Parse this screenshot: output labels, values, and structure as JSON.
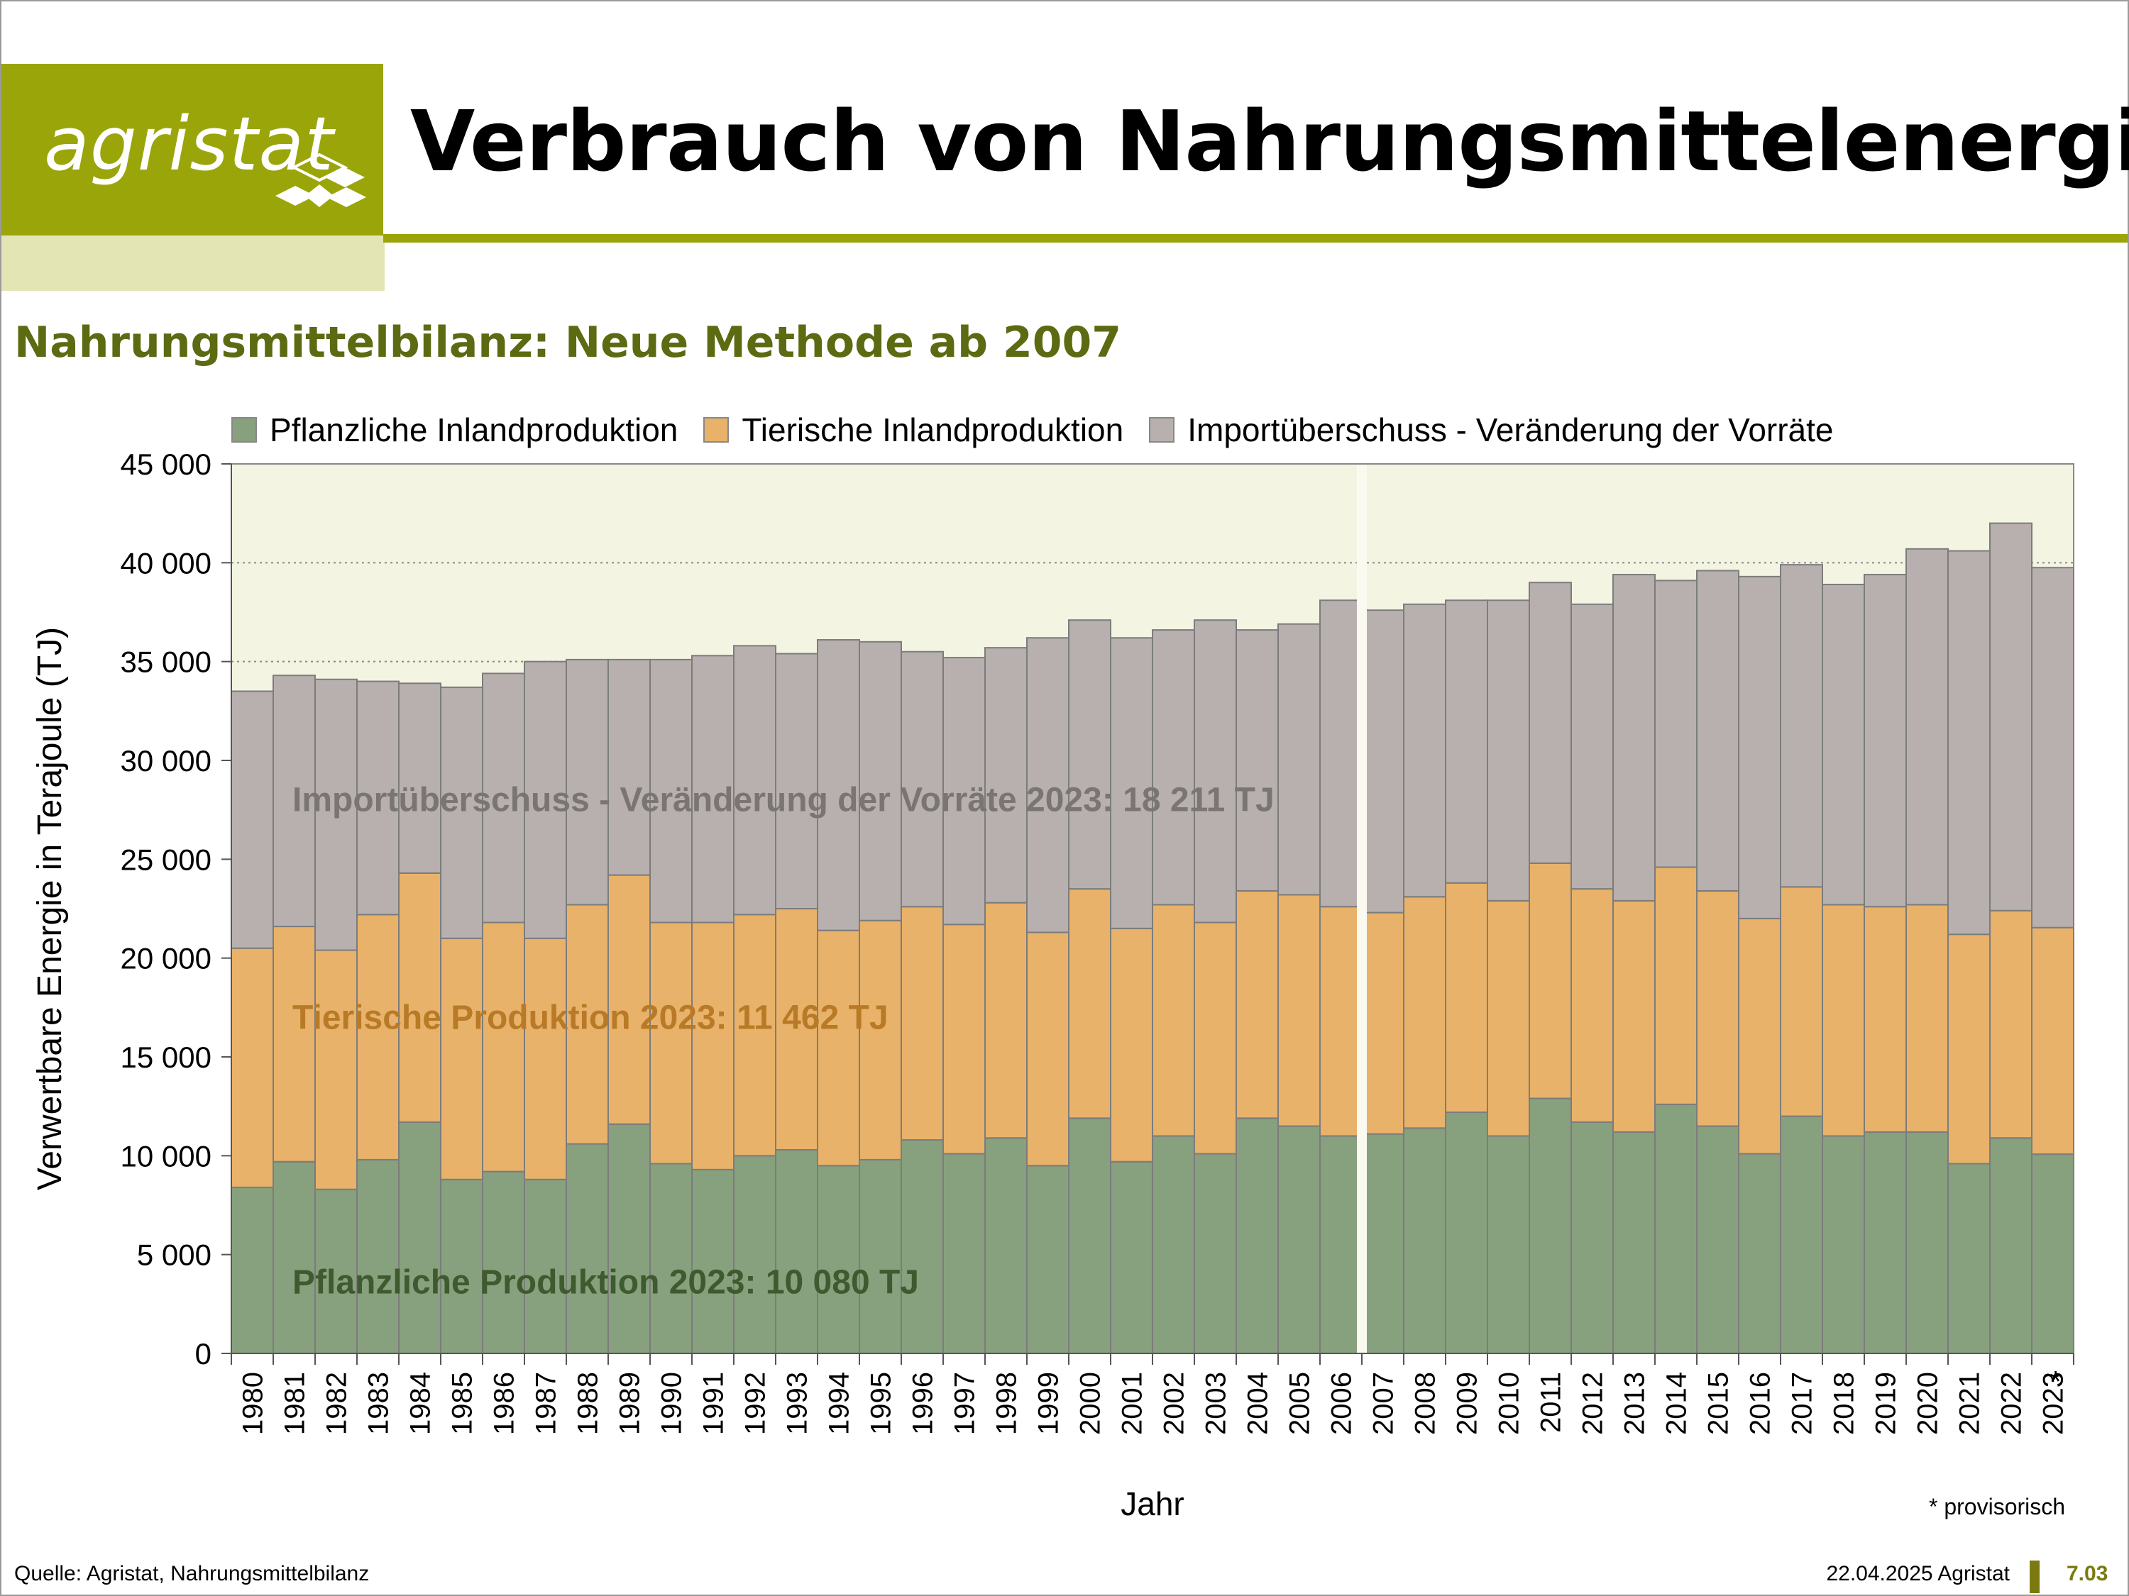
{
  "header": {
    "logo_text": "agristat",
    "title": "Verbrauch von Nahrungsmittelenergie",
    "subtitle": "Nahrungsmittelbilanz: Neue Methode ab 2007"
  },
  "colors": {
    "brand": "#9aa50a",
    "brand_light": "#e3e6b4",
    "plot_bg": "#f3f4e1",
    "pflanzlich": "#87a07e",
    "tierisch": "#e8b26a",
    "import": "#b8b0ae",
    "annot_pflanzlich": "#3e5a2e",
    "annot_tierisch": "#b87a26",
    "annot_import": "#7a7472"
  },
  "legend": [
    {
      "label": "Pflanzliche Inlandproduktion",
      "color": "#87a07e"
    },
    {
      "label": "Tierische Inlandproduktion",
      "color": "#e8b26a"
    },
    {
      "label": "Importüberschuss - Veränderung der Vorräte",
      "color": "#b8b0ae"
    }
  ],
  "chart_data": {
    "type": "bar",
    "stacked": true,
    "xlabel": "Jahr",
    "ylabel": "Verwertbare Energie in Terajoule (TJ)",
    "ylim": [
      0,
      45000
    ],
    "yticks": [
      0,
      5000,
      10000,
      15000,
      20000,
      25000,
      30000,
      35000,
      40000,
      45000
    ],
    "ytick_labels": [
      "0",
      "5 000",
      "10 000",
      "15 000",
      "20 000",
      "25 000",
      "30 000",
      "35 000",
      "40 000",
      "45 000"
    ],
    "grid": "horizontal dotted",
    "method_break_between": [
      "2006",
      "2007"
    ],
    "categories": [
      "1980",
      "1981",
      "1982",
      "1983",
      "1984",
      "1985",
      "1986",
      "1987",
      "1988",
      "1989",
      "1990",
      "1991",
      "1992",
      "1993",
      "1994",
      "1995",
      "1996",
      "1997",
      "1998",
      "1999",
      "2000",
      "2001",
      "2002",
      "2003",
      "2004",
      "2005",
      "2006",
      "2007",
      "2008",
      "2009",
      "2010",
      "2011",
      "2012",
      "2013",
      "2014",
      "2015",
      "2016",
      "2017",
      "2018",
      "2019",
      "2020",
      "2021",
      "2022",
      "2023"
    ],
    "series": [
      {
        "name": "Pflanzliche Inlandproduktion",
        "values": [
          8400,
          9700,
          8300,
          9800,
          11700,
          8800,
          9200,
          8800,
          10600,
          11600,
          9600,
          9300,
          10000,
          10300,
          9500,
          9800,
          10800,
          10100,
          10900,
          9500,
          11900,
          9700,
          11000,
          10100,
          11900,
          11500,
          11000,
          11100,
          11400,
          12200,
          11000,
          12900,
          11700,
          11200,
          12600,
          11500,
          10100,
          12000,
          11000,
          11200,
          11200,
          9600,
          10900,
          10080
        ]
      },
      {
        "name": "Tierische Inlandproduktion",
        "values": [
          12100,
          11900,
          12100,
          12400,
          12600,
          12200,
          12600,
          12200,
          12100,
          12600,
          12200,
          12500,
          12200,
          12200,
          11900,
          12100,
          11800,
          11600,
          11900,
          11800,
          11600,
          11800,
          11700,
          11700,
          11500,
          11700,
          11600,
          11200,
          11700,
          11600,
          11900,
          11900,
          11800,
          11700,
          12000,
          11900,
          11900,
          11600,
          11700,
          11400,
          11500,
          11600,
          11500,
          11462
        ]
      },
      {
        "name": "Importüberschuss - Veränderung der Vorräte",
        "values": [
          13000,
          12700,
          13700,
          11800,
          9600,
          12700,
          12600,
          14000,
          12400,
          10900,
          13300,
          13500,
          13600,
          12900,
          14700,
          14100,
          12900,
          13500,
          12900,
          14900,
          13600,
          14700,
          13900,
          15300,
          13200,
          13700,
          15500,
          15300,
          14800,
          14300,
          15200,
          14200,
          14400,
          16500,
          14500,
          16200,
          17300,
          16300,
          16200,
          16800,
          18000,
          19400,
          19600,
          18211
        ]
      }
    ],
    "annotations": [
      {
        "text": "Importüberschuss - Veränderung der Vorräte 2023: 18 211 TJ",
        "y": 28000
      },
      {
        "text": "Tierische Produktion 2023: 11 462 TJ",
        "y": 17000
      },
      {
        "text": "Pflanzliche Produktion 2023: 10 080 TJ",
        "y": 3600
      }
    ],
    "provisional_marker": {
      "category": "2023",
      "symbol": "*"
    }
  },
  "footer": {
    "footnote": "* provisorisch",
    "source": "Quelle: Agristat, Nahrungsmittelbilanz",
    "date": "22.04.2025 Agristat",
    "page": "7.03"
  }
}
